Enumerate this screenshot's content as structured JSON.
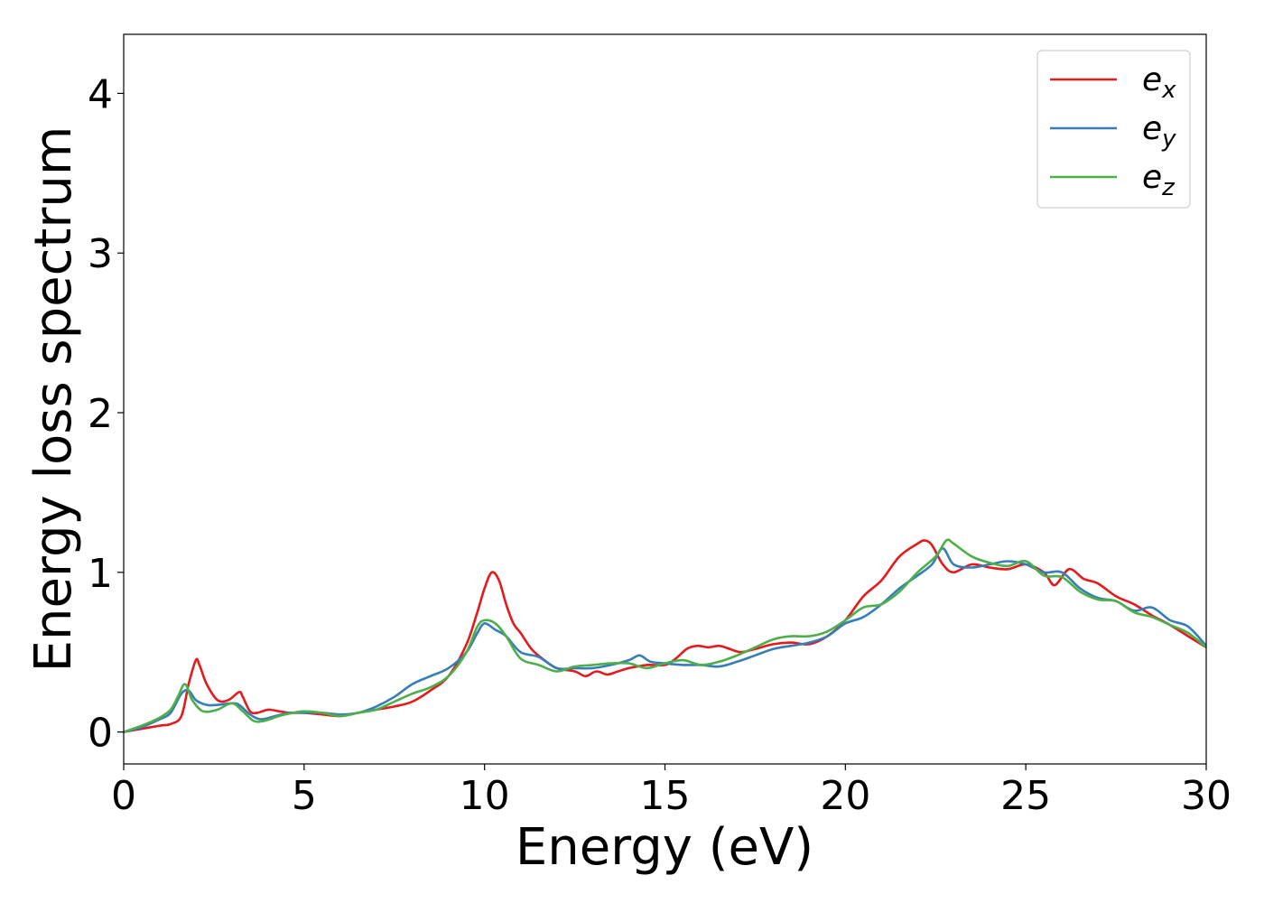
{
  "chart_data": {
    "type": "line",
    "title": "",
    "xlabel": "Energy (eV)",
    "ylabel": "Energy loss spectrum",
    "xlim": [
      0,
      30
    ],
    "ylim": [
      -0.2,
      4.37
    ],
    "xticks": [
      0,
      5,
      10,
      15,
      20,
      25,
      30
    ],
    "yticks": [
      0,
      1,
      2,
      3,
      4
    ],
    "xtick_labels": [
      "0",
      "5",
      "10",
      "15",
      "20",
      "25",
      "30"
    ],
    "ytick_labels": [
      "0",
      "1",
      "2",
      "3",
      "4"
    ],
    "grid": false,
    "legend_position": "top-right",
    "series": [
      {
        "name": "e",
        "name_sub": "x",
        "color": "#e41a1c",
        "x": [
          0,
          0.5,
          1.0,
          1.3,
          1.6,
          1.8,
          2.0,
          2.1,
          2.3,
          2.6,
          2.9,
          3.2,
          3.3,
          3.5,
          3.7,
          4.0,
          4.3,
          4.6,
          5.0,
          5.5,
          6.0,
          6.5,
          7.0,
          7.5,
          8.0,
          8.5,
          9.0,
          9.5,
          9.8,
          10.0,
          10.2,
          10.4,
          10.6,
          10.8,
          11.0,
          11.3,
          11.6,
          12.0,
          12.5,
          12.8,
          13.1,
          13.4,
          13.7,
          14.0,
          14.5,
          15.0,
          15.3,
          15.6,
          15.9,
          16.2,
          16.5,
          16.8,
          17.1,
          17.5,
          18.0,
          18.5,
          19.0,
          19.5,
          20.0,
          20.5,
          21.0,
          21.5,
          22.0,
          22.2,
          22.4,
          22.7,
          23.0,
          23.5,
          24.0,
          24.5,
          25.0,
          25.5,
          25.8,
          26.2,
          26.6,
          27.0,
          27.5,
          28.0,
          28.5,
          29.0,
          29.5,
          30.0
        ],
        "y": [
          0,
          0.02,
          0.04,
          0.05,
          0.1,
          0.3,
          0.45,
          0.42,
          0.3,
          0.2,
          0.2,
          0.25,
          0.22,
          0.13,
          0.12,
          0.14,
          0.13,
          0.12,
          0.12,
          0.11,
          0.1,
          0.12,
          0.14,
          0.16,
          0.19,
          0.26,
          0.35,
          0.55,
          0.75,
          0.9,
          1.0,
          0.95,
          0.8,
          0.68,
          0.62,
          0.52,
          0.46,
          0.4,
          0.38,
          0.35,
          0.38,
          0.36,
          0.38,
          0.4,
          0.42,
          0.42,
          0.46,
          0.52,
          0.54,
          0.53,
          0.54,
          0.52,
          0.5,
          0.52,
          0.55,
          0.56,
          0.55,
          0.6,
          0.7,
          0.85,
          0.95,
          1.1,
          1.18,
          1.2,
          1.17,
          1.05,
          1.0,
          1.05,
          1.03,
          1.02,
          1.05,
          1.0,
          0.92,
          1.02,
          0.96,
          0.93,
          0.85,
          0.8,
          0.73,
          0.67,
          0.6,
          0.53
        ]
      },
      {
        "name": "e",
        "name_sub": "y",
        "color": "#377eb8",
        "x": [
          0,
          0.5,
          1.0,
          1.3,
          1.6,
          1.8,
          2.0,
          2.3,
          2.6,
          3.0,
          3.2,
          3.5,
          3.8,
          4.2,
          4.6,
          5.0,
          5.5,
          6.0,
          6.5,
          7.0,
          7.5,
          8.0,
          8.5,
          9.0,
          9.5,
          9.8,
          10.0,
          10.3,
          10.6,
          11.0,
          11.5,
          12.0,
          12.5,
          13.0,
          13.5,
          14.0,
          14.3,
          14.6,
          15.0,
          15.5,
          16.0,
          16.5,
          17.0,
          17.5,
          18.0,
          18.5,
          19.0,
          19.5,
          20.0,
          20.5,
          21.0,
          21.5,
          22.0,
          22.4,
          22.7,
          23.0,
          23.5,
          24.0,
          24.5,
          25.0,
          25.5,
          26.0,
          26.5,
          27.0,
          27.5,
          28.0,
          28.5,
          29.0,
          29.5,
          30.0
        ],
        "y": [
          0,
          0.03,
          0.08,
          0.12,
          0.24,
          0.26,
          0.2,
          0.17,
          0.17,
          0.18,
          0.17,
          0.11,
          0.08,
          0.1,
          0.12,
          0.12,
          0.12,
          0.11,
          0.12,
          0.16,
          0.22,
          0.3,
          0.35,
          0.4,
          0.5,
          0.62,
          0.68,
          0.64,
          0.6,
          0.5,
          0.47,
          0.4,
          0.4,
          0.4,
          0.42,
          0.45,
          0.48,
          0.44,
          0.43,
          0.42,
          0.42,
          0.41,
          0.44,
          0.48,
          0.52,
          0.54,
          0.56,
          0.6,
          0.68,
          0.72,
          0.8,
          0.9,
          0.98,
          1.05,
          1.15,
          1.05,
          1.03,
          1.05,
          1.07,
          1.05,
          1.0,
          1.0,
          0.9,
          0.84,
          0.82,
          0.76,
          0.78,
          0.7,
          0.66,
          0.54
        ]
      },
      {
        "name": "e",
        "name_sub": "z",
        "color": "#4daf4a",
        "x": [
          0,
          0.5,
          1.0,
          1.3,
          1.5,
          1.7,
          1.9,
          2.2,
          2.6,
          3.0,
          3.3,
          3.6,
          3.9,
          4.3,
          4.7,
          5.0,
          5.5,
          6.0,
          6.5,
          7.0,
          7.5,
          8.0,
          8.5,
          9.0,
          9.5,
          9.8,
          10.0,
          10.3,
          10.6,
          11.0,
          11.5,
          12.0,
          12.5,
          13.0,
          13.5,
          14.0,
          14.5,
          15.0,
          15.5,
          16.0,
          16.5,
          17.0,
          17.5,
          18.0,
          18.5,
          19.0,
          19.5,
          20.0,
          20.5,
          21.0,
          21.5,
          22.0,
          22.5,
          22.8,
          23.0,
          23.5,
          24.0,
          24.5,
          25.0,
          25.5,
          26.0,
          26.5,
          27.0,
          27.5,
          28.0,
          28.5,
          29.0,
          29.5,
          30.0
        ],
        "y": [
          0,
          0.04,
          0.09,
          0.14,
          0.22,
          0.3,
          0.2,
          0.13,
          0.14,
          0.18,
          0.13,
          0.07,
          0.07,
          0.1,
          0.12,
          0.13,
          0.12,
          0.1,
          0.12,
          0.14,
          0.19,
          0.24,
          0.28,
          0.35,
          0.5,
          0.66,
          0.7,
          0.68,
          0.6,
          0.46,
          0.42,
          0.38,
          0.41,
          0.42,
          0.43,
          0.43,
          0.4,
          0.43,
          0.45,
          0.42,
          0.44,
          0.48,
          0.53,
          0.58,
          0.6,
          0.6,
          0.63,
          0.7,
          0.78,
          0.8,
          0.88,
          1.0,
          1.1,
          1.2,
          1.18,
          1.1,
          1.06,
          1.04,
          1.07,
          0.98,
          0.97,
          0.88,
          0.83,
          0.82,
          0.75,
          0.72,
          0.67,
          0.62,
          0.53
        ]
      }
    ]
  }
}
